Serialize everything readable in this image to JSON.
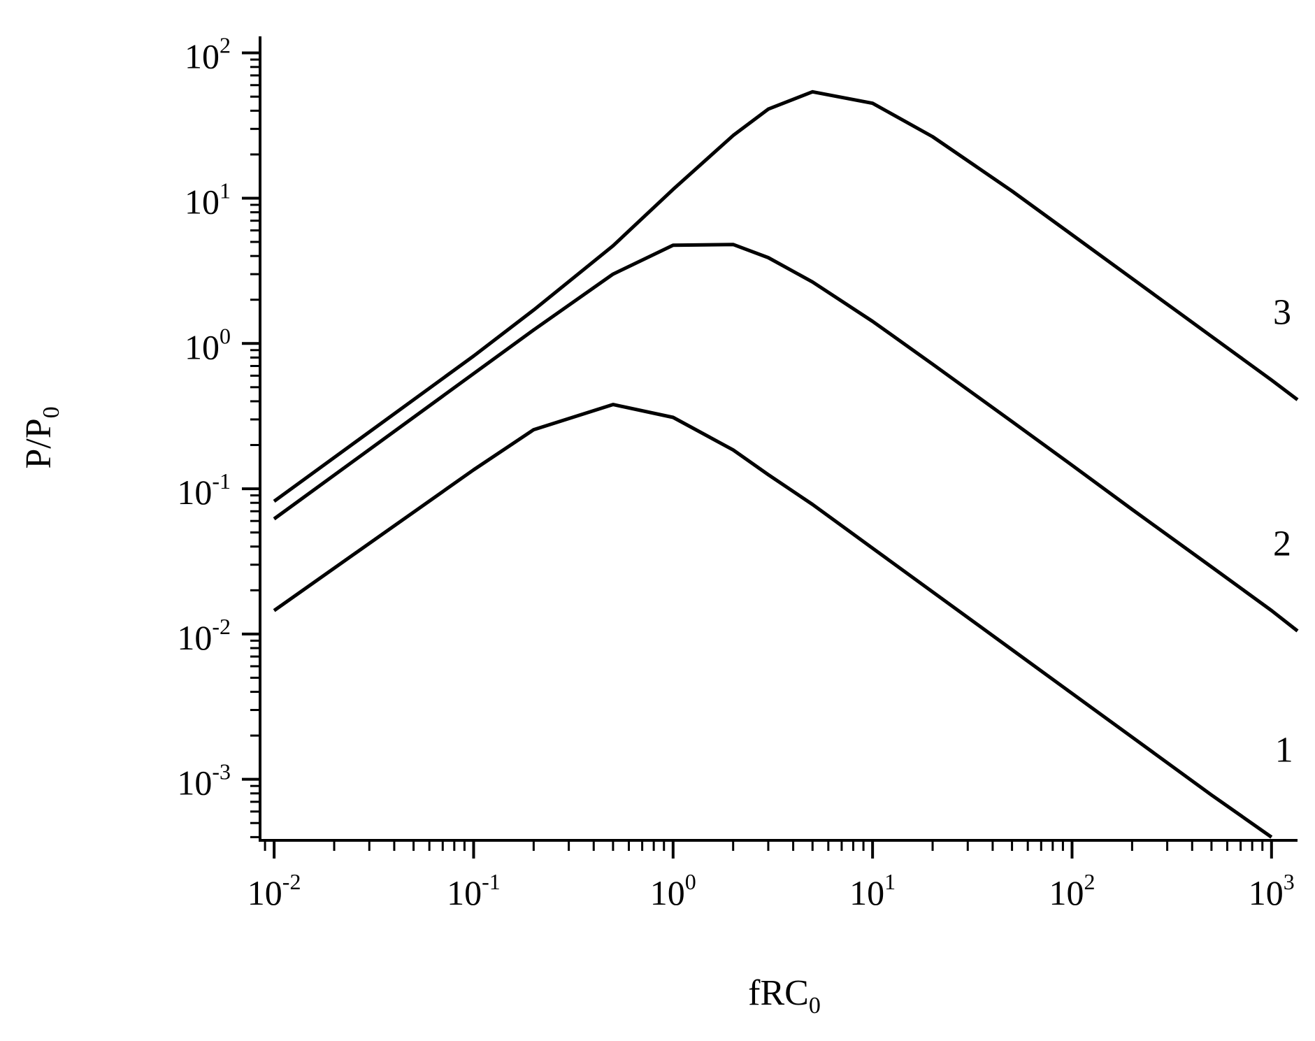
{
  "chart_data": {
    "type": "line",
    "xscale": "log",
    "yscale": "log",
    "xlim": [
      0.0085,
      1350
    ],
    "ylim": [
      0.00038,
      130
    ],
    "xlabel": {
      "base": "fRC",
      "sub": "0"
    },
    "ylabel": {
      "base": "P/P",
      "sub": "0"
    },
    "xticks": [
      {
        "value": 0.01,
        "base": "10",
        "exp": "-2"
      },
      {
        "value": 0.1,
        "base": "10",
        "exp": "-1"
      },
      {
        "value": 1,
        "base": "10",
        "exp": "0"
      },
      {
        "value": 10,
        "base": "10",
        "exp": "1"
      },
      {
        "value": 100,
        "base": "10",
        "exp": "2"
      },
      {
        "value": 1000,
        "base": "10",
        "exp": "3"
      }
    ],
    "yticks": [
      {
        "value": 0.001,
        "base": "10",
        "exp": "-3"
      },
      {
        "value": 0.01,
        "base": "10",
        "exp": "-2"
      },
      {
        "value": 0.1,
        "base": "10",
        "exp": "-1"
      },
      {
        "value": 1,
        "base": "10",
        "exp": "0"
      },
      {
        "value": 10,
        "base": "10",
        "exp": "1"
      },
      {
        "value": 100,
        "base": "10",
        "exp": "2"
      }
    ],
    "grid": false,
    "line_color": "#000000",
    "series": [
      {
        "name": "1",
        "points": [
          [
            0.01,
            0.0145
          ],
          [
            0.1,
            0.135
          ],
          [
            0.2,
            0.255
          ],
          [
            0.5,
            0.38
          ],
          [
            1,
            0.31
          ],
          [
            2,
            0.185
          ],
          [
            3,
            0.125
          ],
          [
            5,
            0.078
          ],
          [
            10,
            0.039
          ],
          [
            20,
            0.0195
          ],
          [
            50,
            0.0078
          ],
          [
            100,
            0.0039
          ],
          [
            200,
            0.00195
          ],
          [
            500,
            0.00078
          ],
          [
            1000,
            0.0004
          ]
        ]
      },
      {
        "name": "2",
        "points": [
          [
            0.01,
            0.062
          ],
          [
            0.1,
            0.62
          ],
          [
            0.2,
            1.24
          ],
          [
            0.5,
            3.0
          ],
          [
            1,
            4.75
          ],
          [
            2,
            4.8
          ],
          [
            3,
            3.9
          ],
          [
            5,
            2.65
          ],
          [
            10,
            1.42
          ],
          [
            20,
            0.72
          ],
          [
            50,
            0.29
          ],
          [
            100,
            0.145
          ],
          [
            200,
            0.072
          ],
          [
            500,
            0.029
          ],
          [
            1000,
            0.0145
          ],
          [
            1350,
            0.0105
          ]
        ]
      },
      {
        "name": "3",
        "points": [
          [
            0.01,
            0.082
          ],
          [
            0.1,
            0.82
          ],
          [
            0.2,
            1.7
          ],
          [
            0.5,
            4.7
          ],
          [
            1,
            11.5
          ],
          [
            2,
            27
          ],
          [
            3,
            41
          ],
          [
            5,
            54
          ],
          [
            10,
            45
          ],
          [
            20,
            26.5
          ],
          [
            50,
            11.2
          ],
          [
            100,
            5.6
          ],
          [
            200,
            2.8
          ],
          [
            500,
            1.12
          ],
          [
            1000,
            0.56
          ],
          [
            1350,
            0.41
          ]
        ]
      }
    ]
  }
}
